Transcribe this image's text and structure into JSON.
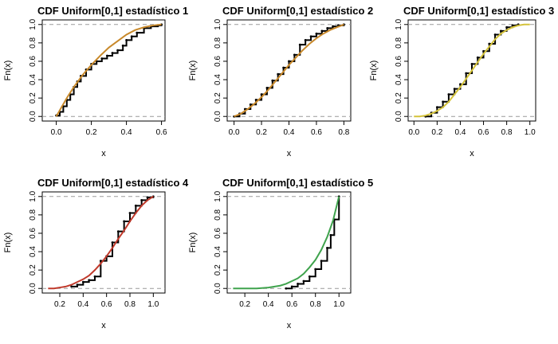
{
  "chart_data": [
    {
      "type": "line",
      "title": "CDF Uniform[0,1]  estadístico  1",
      "xlabel": "x",
      "ylabel": "Fn(x)",
      "xlim": [
        -0.08,
        0.62
      ],
      "ylim": [
        -0.05,
        1.05
      ],
      "xticks": [
        "0.0",
        "0.2",
        "0.4",
        "0.6"
      ],
      "yticks": [
        "0.0",
        "0.2",
        "0.4",
        "0.6",
        "0.8",
        "1.0"
      ],
      "reference_lines_y": [
        0,
        1
      ],
      "series": [
        {
          "kind": "ecdf",
          "color": "#000000",
          "x": [
            0.0,
            0.02,
            0.04,
            0.06,
            0.08,
            0.1,
            0.12,
            0.14,
            0.17,
            0.2,
            0.23,
            0.26,
            0.29,
            0.32,
            0.35,
            0.38,
            0.4,
            0.43,
            0.46,
            0.5,
            0.54,
            0.58,
            0.6
          ],
          "y": [
            0.01,
            0.05,
            0.11,
            0.18,
            0.24,
            0.32,
            0.38,
            0.44,
            0.51,
            0.57,
            0.6,
            0.63,
            0.66,
            0.69,
            0.72,
            0.77,
            0.83,
            0.87,
            0.91,
            0.96,
            0.98,
            0.99,
            1.0
          ]
        },
        {
          "kind": "theoretical",
          "color": "#c8892b",
          "x": [
            0.0,
            0.03,
            0.06,
            0.1,
            0.15,
            0.2,
            0.25,
            0.3,
            0.35,
            0.4,
            0.45,
            0.5,
            0.55,
            0.6
          ],
          "y": [
            0.0,
            0.1,
            0.2,
            0.32,
            0.45,
            0.56,
            0.66,
            0.75,
            0.82,
            0.89,
            0.94,
            0.97,
            0.99,
            1.0
          ]
        }
      ]
    },
    {
      "type": "line",
      "title": "CDF Uniform[0,1]  estadístico  2",
      "xlabel": "x",
      "ylabel": "Fn(x)",
      "xlim": [
        -0.05,
        0.85
      ],
      "ylim": [
        -0.05,
        1.05
      ],
      "xticks": [
        "0.0",
        "0.2",
        "0.4",
        "0.6",
        "0.8"
      ],
      "yticks": [
        "0.0",
        "0.2",
        "0.4",
        "0.6",
        "0.8",
        "1.0"
      ],
      "reference_lines_y": [
        0,
        1
      ],
      "series": [
        {
          "kind": "ecdf",
          "color": "#000000",
          "x": [
            0.0,
            0.04,
            0.08,
            0.12,
            0.16,
            0.2,
            0.24,
            0.28,
            0.32,
            0.36,
            0.4,
            0.44,
            0.48,
            0.52,
            0.56,
            0.6,
            0.64,
            0.68,
            0.72,
            0.76,
            0.8
          ],
          "y": [
            0.0,
            0.03,
            0.08,
            0.13,
            0.18,
            0.24,
            0.31,
            0.39,
            0.46,
            0.53,
            0.6,
            0.67,
            0.78,
            0.83,
            0.87,
            0.9,
            0.93,
            0.96,
            0.98,
            0.99,
            1.0
          ]
        },
        {
          "kind": "theoretical",
          "color": "#c8892b",
          "x": [
            0.0,
            0.05,
            0.1,
            0.15,
            0.2,
            0.25,
            0.3,
            0.35,
            0.4,
            0.45,
            0.5,
            0.55,
            0.6,
            0.65,
            0.7,
            0.75,
            0.8
          ],
          "y": [
            0.0,
            0.03,
            0.08,
            0.14,
            0.21,
            0.29,
            0.38,
            0.47,
            0.56,
            0.64,
            0.72,
            0.79,
            0.85,
            0.9,
            0.94,
            0.97,
            1.0
          ]
        }
      ]
    },
    {
      "type": "line",
      "title": "CDF Uniform[0,1]  estadístico  3",
      "xlabel": "x",
      "ylabel": "Fn(x)",
      "xlim": [
        -0.05,
        1.05
      ],
      "ylim": [
        -0.05,
        1.05
      ],
      "xticks": [
        "0.0",
        "0.2",
        "0.4",
        "0.6",
        "0.8",
        "1.0"
      ],
      "yticks": [
        "0.0",
        "0.2",
        "0.4",
        "0.6",
        "0.8",
        "1.0"
      ],
      "reference_lines_y": [
        0,
        1
      ],
      "series": [
        {
          "kind": "ecdf",
          "color": "#000000",
          "x": [
            0.1,
            0.15,
            0.2,
            0.25,
            0.3,
            0.35,
            0.4,
            0.45,
            0.5,
            0.55,
            0.6,
            0.65,
            0.7,
            0.75,
            0.8,
            0.85,
            0.9
          ],
          "y": [
            0.0,
            0.04,
            0.1,
            0.16,
            0.24,
            0.3,
            0.35,
            0.47,
            0.57,
            0.64,
            0.71,
            0.79,
            0.89,
            0.93,
            0.97,
            0.99,
            1.0
          ]
        },
        {
          "kind": "theoretical",
          "color": "#d4c23a",
          "x": [
            0.0,
            0.05,
            0.1,
            0.15,
            0.2,
            0.25,
            0.3,
            0.35,
            0.4,
            0.45,
            0.5,
            0.55,
            0.6,
            0.65,
            0.7,
            0.75,
            0.8,
            0.85,
            0.9,
            0.95,
            1.0
          ],
          "y": [
            0.0,
            0.0,
            0.01,
            0.03,
            0.06,
            0.1,
            0.16,
            0.24,
            0.32,
            0.41,
            0.5,
            0.59,
            0.68,
            0.76,
            0.84,
            0.9,
            0.94,
            0.97,
            0.99,
            1.0,
            1.0
          ]
        }
      ]
    },
    {
      "type": "line",
      "title": "CDF Uniform[0,1]  estadístico  4",
      "xlabel": "x",
      "ylabel": "Fn(x)",
      "xlim": [
        0.05,
        1.1
      ],
      "ylim": [
        -0.05,
        1.05
      ],
      "xticks": [
        "0.2",
        "0.4",
        "0.6",
        "0.8",
        "1.0"
      ],
      "yticks": [
        "0.0",
        "0.2",
        "0.4",
        "0.6",
        "0.8",
        "1.0"
      ],
      "reference_lines_y": [
        0,
        1
      ],
      "series": [
        {
          "kind": "ecdf",
          "color": "#000000",
          "x": [
            0.3,
            0.35,
            0.4,
            0.45,
            0.5,
            0.55,
            0.6,
            0.65,
            0.7,
            0.75,
            0.8,
            0.85,
            0.9,
            0.95,
            1.0
          ],
          "y": [
            0.02,
            0.04,
            0.07,
            0.09,
            0.13,
            0.3,
            0.35,
            0.5,
            0.62,
            0.73,
            0.82,
            0.9,
            0.96,
            0.99,
            1.0
          ]
        },
        {
          "kind": "theoretical",
          "color": "#c0392b",
          "x": [
            0.1,
            0.15,
            0.2,
            0.25,
            0.3,
            0.35,
            0.4,
            0.45,
            0.5,
            0.55,
            0.6,
            0.65,
            0.7,
            0.75,
            0.8,
            0.85,
            0.9,
            0.95,
            1.0
          ],
          "y": [
            0.0,
            0.0,
            0.01,
            0.02,
            0.04,
            0.07,
            0.1,
            0.14,
            0.2,
            0.27,
            0.35,
            0.44,
            0.54,
            0.63,
            0.73,
            0.82,
            0.9,
            0.96,
            1.0
          ]
        }
      ]
    },
    {
      "type": "line",
      "title": "CDF Uniform[0,1]  estadístico  5",
      "xlabel": "x",
      "ylabel": "Fn(x)",
      "xlim": [
        0.05,
        1.1
      ],
      "ylim": [
        -0.05,
        1.05
      ],
      "xticks": [
        "0.2",
        "0.4",
        "0.6",
        "0.8",
        "1.0"
      ],
      "yticks": [
        "0.0",
        "0.2",
        "0.4",
        "0.6",
        "0.8",
        "1.0"
      ],
      "reference_lines_y": [
        0,
        1
      ],
      "series": [
        {
          "kind": "ecdf",
          "color": "#000000",
          "x": [
            0.55,
            0.6,
            0.65,
            0.7,
            0.75,
            0.8,
            0.85,
            0.9,
            0.93,
            0.96,
            1.0
          ],
          "y": [
            0.0,
            0.02,
            0.05,
            0.08,
            0.13,
            0.21,
            0.3,
            0.44,
            0.58,
            0.75,
            1.0
          ]
        },
        {
          "kind": "theoretical",
          "color": "#3fa34d",
          "x": [
            0.1,
            0.2,
            0.3,
            0.4,
            0.5,
            0.55,
            0.6,
            0.65,
            0.7,
            0.75,
            0.8,
            0.85,
            0.9,
            0.95,
            1.0
          ],
          "y": [
            0.0,
            0.0,
            0.0,
            0.01,
            0.03,
            0.05,
            0.08,
            0.11,
            0.16,
            0.23,
            0.31,
            0.42,
            0.56,
            0.74,
            1.0
          ]
        }
      ]
    }
  ]
}
